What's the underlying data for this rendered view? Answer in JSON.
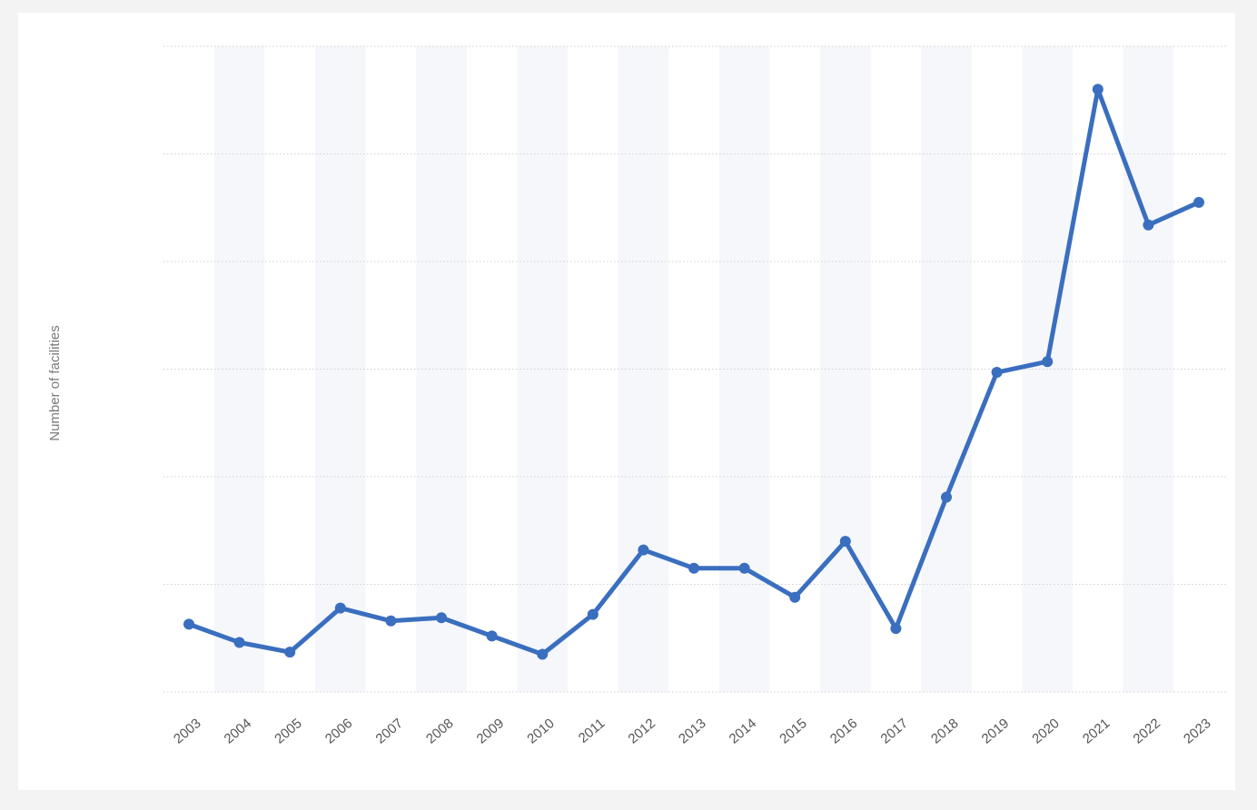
{
  "chart_data": {
    "type": "line",
    "title": "",
    "xlabel": "",
    "ylabel": "Number of facilities",
    "grid": true,
    "legend": "none",
    "ylim": [
      0,
      6
    ],
    "y_ticks_labeled": false,
    "categories": [
      "2003",
      "2004",
      "2005",
      "2006",
      "2007",
      "2008",
      "2009",
      "2010",
      "2011",
      "2012",
      "2013",
      "2014",
      "2015",
      "2016",
      "2017",
      "2018",
      "2019",
      "2020",
      "2021",
      "2022",
      "2023"
    ],
    "series": [
      {
        "color": "#3a6ebf",
        "values": [
          0.63,
          0.46,
          0.37,
          0.78,
          0.66,
          0.69,
          0.52,
          0.35,
          0.72,
          1.32,
          1.15,
          1.15,
          0.88,
          1.4,
          0.59,
          1.81,
          2.97,
          3.07,
          5.6,
          4.34,
          4.55
        ]
      }
    ],
    "colors": {
      "series": "#3a6ebf",
      "grid": "#cfcfcf",
      "background": "#ffffff"
    }
  }
}
